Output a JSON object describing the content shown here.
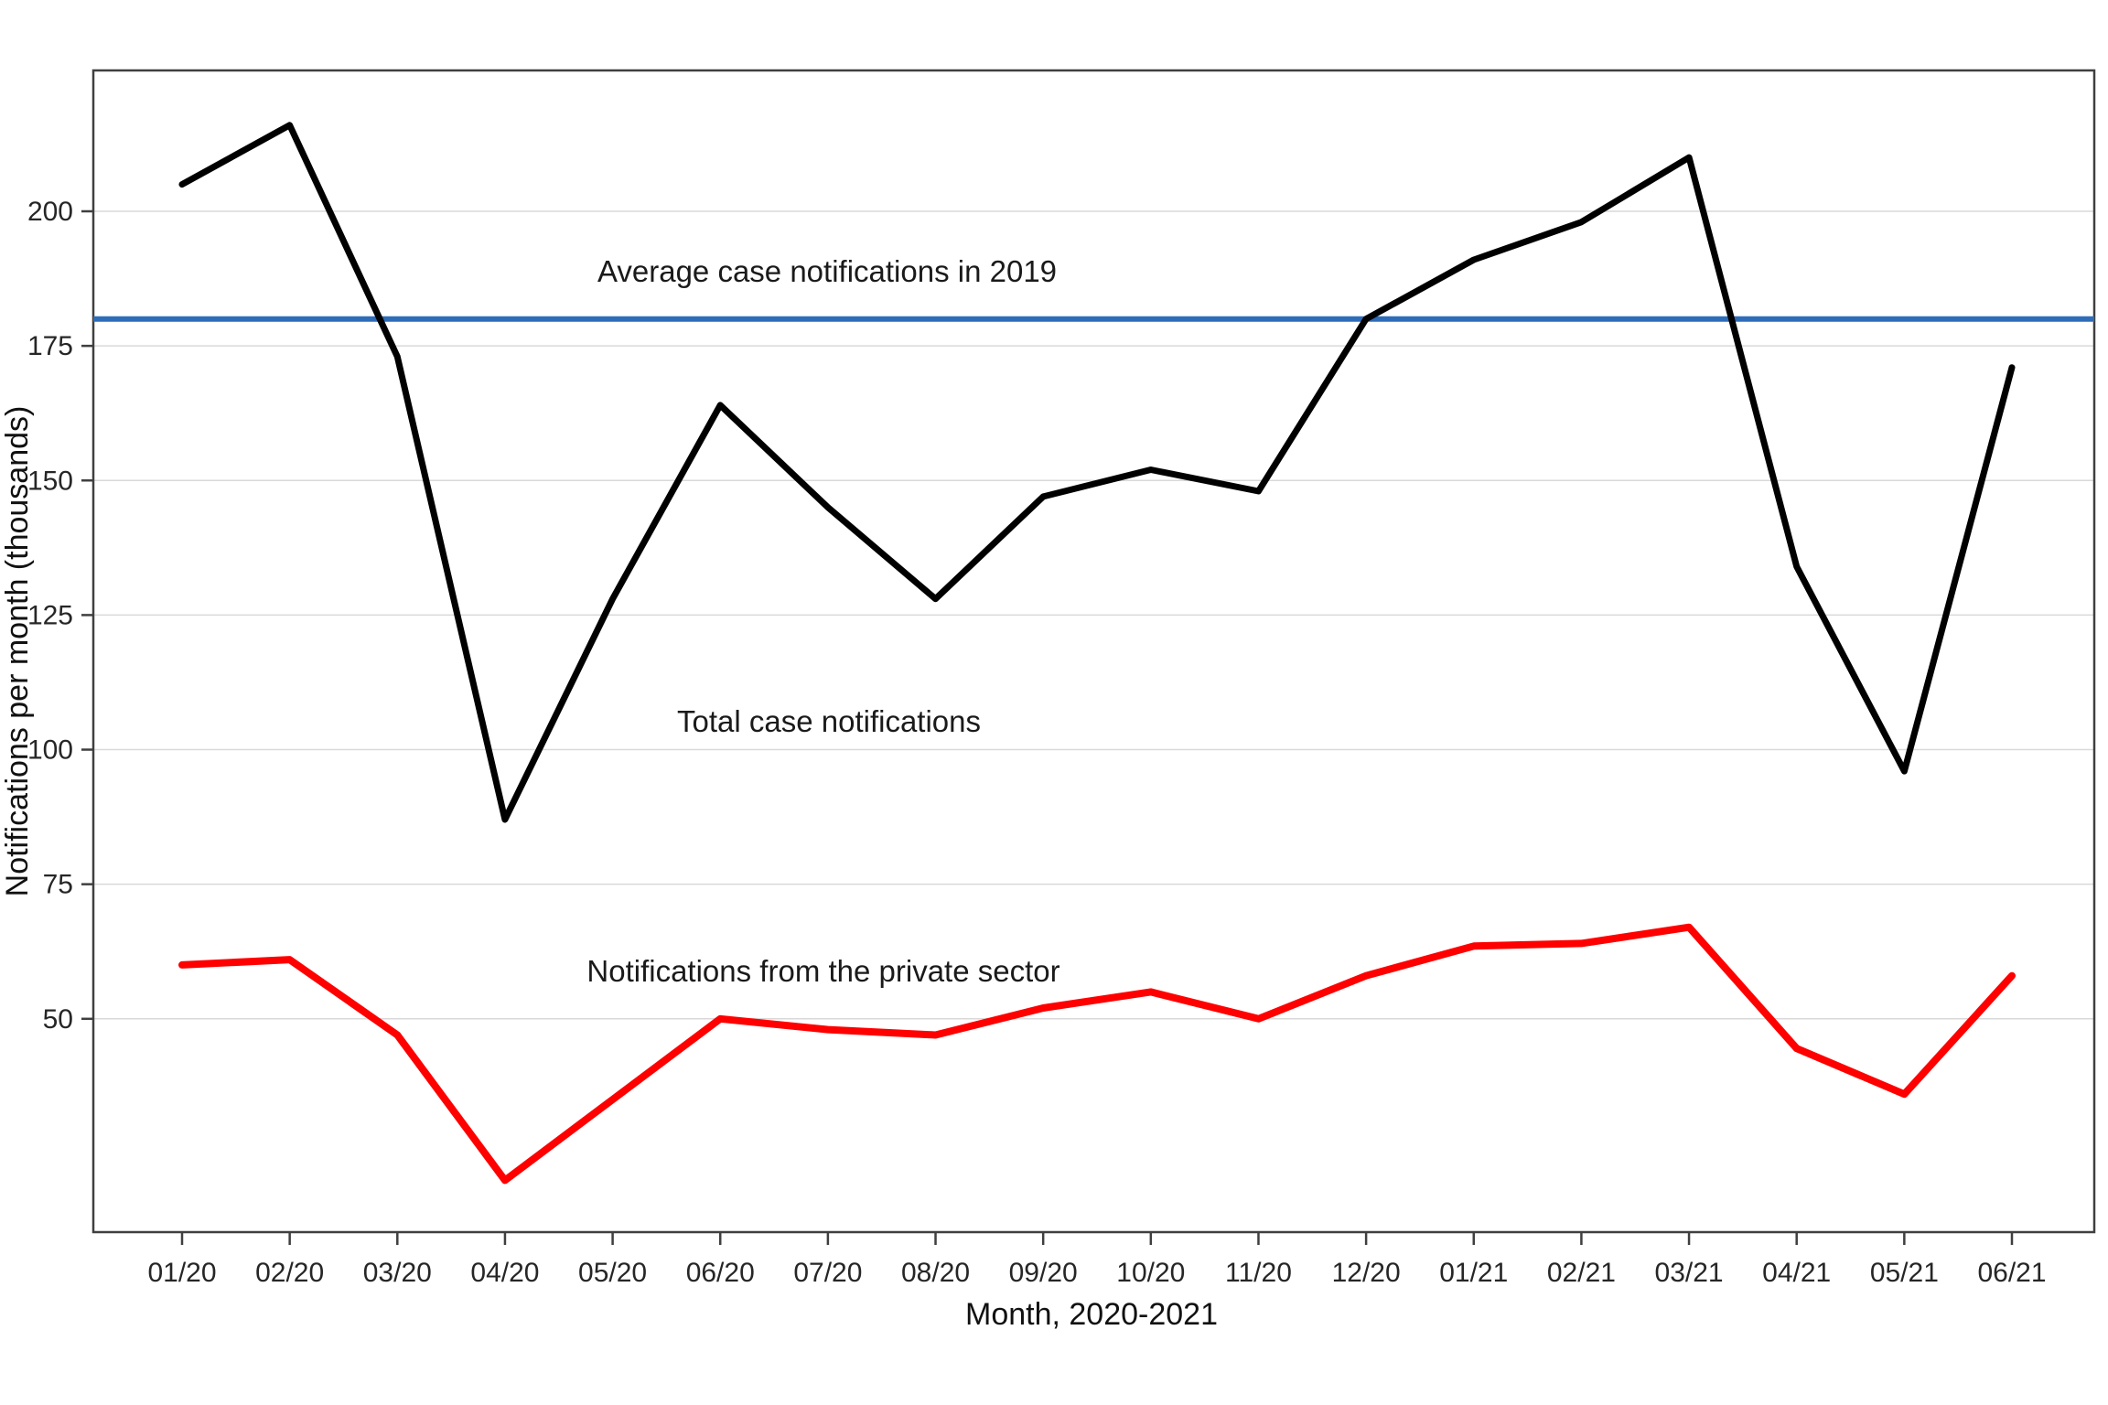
{
  "chart_data": {
    "type": "line",
    "x": [
      "01/20",
      "02/20",
      "03/20",
      "04/20",
      "05/20",
      "06/20",
      "07/20",
      "08/20",
      "09/20",
      "10/20",
      "11/20",
      "12/20",
      "01/21",
      "02/21",
      "03/21",
      "04/21",
      "05/21",
      "06/21"
    ],
    "series": [
      {
        "name": "Total case notifications",
        "color": "#000000",
        "values": [
          205,
          216,
          173,
          87,
          128,
          164,
          145,
          128,
          147,
          152,
          148,
          180,
          191,
          198,
          210,
          134,
          96,
          171
        ]
      },
      {
        "name": "Notifications from the private sector",
        "color": "#ff0000",
        "values": [
          60,
          61,
          47,
          20,
          35,
          50,
          48,
          47,
          52,
          55,
          50,
          58,
          63.5,
          64,
          67,
          44.5,
          36,
          58
        ]
      }
    ],
    "refline": {
      "label": "Average case notifications in 2019",
      "value": 180,
      "color": "#2e6cb8",
      "label_color": "#3a6bc8"
    },
    "title": "",
    "xlabel": "Month, 2020-2021",
    "ylabel": "Notifications per month (thousands)",
    "y_ticks": [
      50,
      75,
      100,
      125,
      150,
      175,
      200
    ],
    "ylim": [
      10,
      226
    ],
    "grid": "horizontal",
    "legend_position": "inline-annotations",
    "colors": {
      "gridline": "#d9d9d9",
      "plot_border": "#3f3f3f",
      "tick": "#3f3f3f"
    }
  }
}
